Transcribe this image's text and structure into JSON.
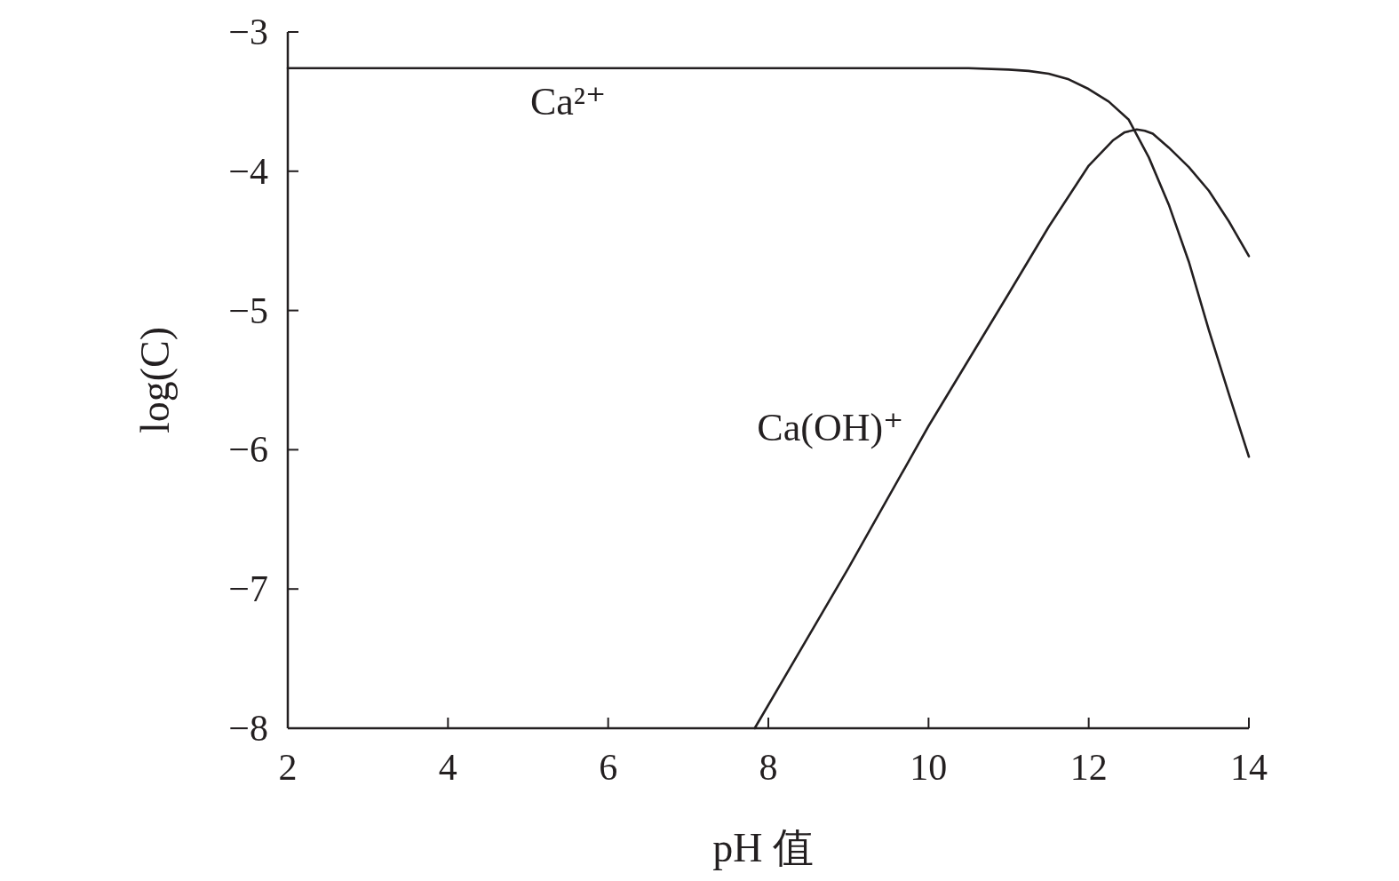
{
  "chart_data": {
    "type": "line",
    "xlabel": "pH 值",
    "ylabel": "log(C)",
    "xlim": [
      2,
      14
    ],
    "ylim": [
      -8,
      -3
    ],
    "xticks": [
      2,
      4,
      6,
      8,
      10,
      12,
      14
    ],
    "yticks": [
      {
        "value": -3,
        "label": "−3"
      },
      {
        "value": -4,
        "label": "−4"
      },
      {
        "value": -5,
        "label": "−5"
      },
      {
        "value": -6,
        "label": "−6"
      },
      {
        "value": -7,
        "label": "−7"
      },
      {
        "value": -8,
        "label": "−8"
      }
    ],
    "grid": false,
    "marker": "none",
    "line_style": "solid",
    "series": [
      {
        "name": "Ca²⁺",
        "color": "#231f20",
        "x": [
          2,
          4,
          5.5,
          8,
          10,
          10.5,
          11,
          11.25,
          11.5,
          11.75,
          12,
          12.25,
          12.5,
          12.75,
          13,
          13.25,
          13.5,
          13.75,
          14
        ],
        "values": [
          -3.26,
          -3.26,
          -3.26,
          -3.26,
          -3.26,
          -3.26,
          -3.27,
          -3.28,
          -3.3,
          -3.34,
          -3.41,
          -3.5,
          -3.63,
          -3.9,
          -4.24,
          -4.65,
          -5.14,
          -5.6,
          -6.05
        ]
      },
      {
        "name": "Ca(OH)⁺",
        "color": "#231f20",
        "x": [
          7.83,
          9,
          10,
          11,
          11.5,
          12,
          12.3,
          12.45,
          12.6,
          12.7,
          12.8,
          13,
          13.25,
          13.5,
          13.75,
          14
        ],
        "values": [
          -8,
          -6.85,
          -5.83,
          -4.88,
          -4.4,
          -3.96,
          -3.78,
          -3.72,
          -3.7,
          -3.71,
          -3.73,
          -3.83,
          -3.97,
          -4.14,
          -4.36,
          -4.61
        ]
      }
    ]
  }
}
